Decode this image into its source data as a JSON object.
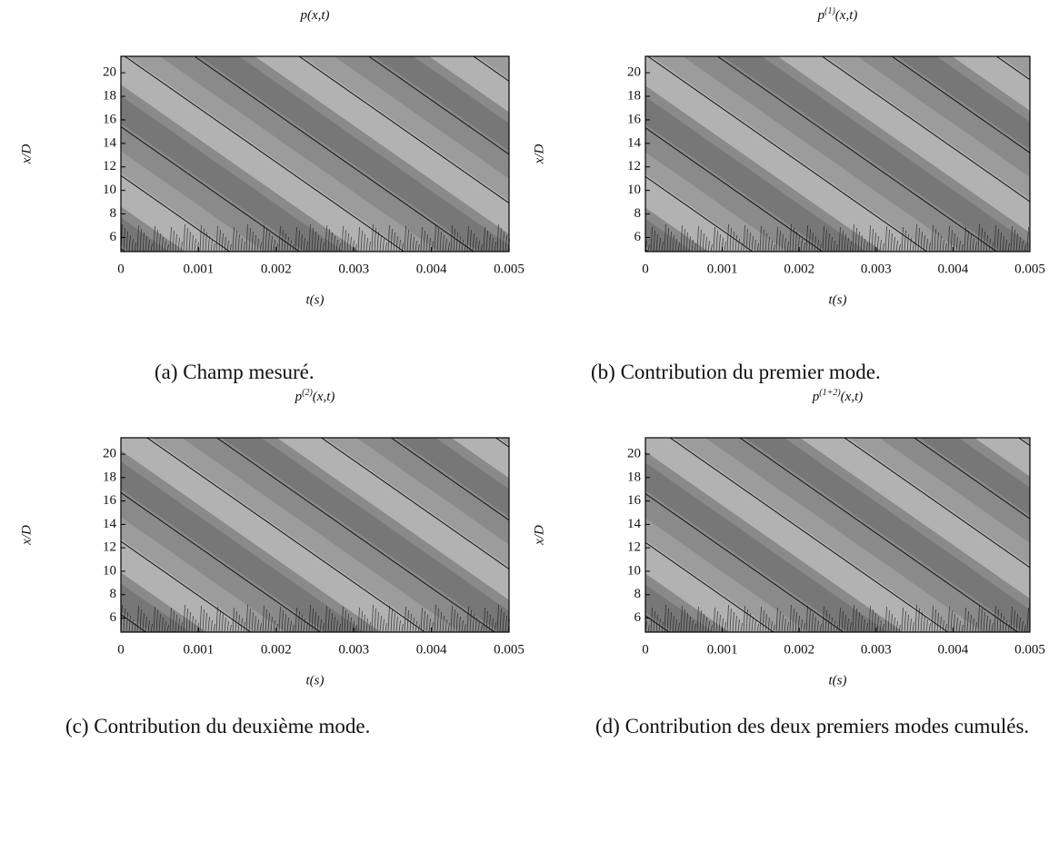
{
  "chart_data": [
    {
      "type": "contour",
      "title": "p",
      "title_args": "(x,t)",
      "xlabel": "t(s)",
      "ylabel": "x/D",
      "xlim": [
        0,
        0.005
      ],
      "xticks": [
        0,
        0.001,
        0.002,
        0.003,
        0.004,
        0.005
      ],
      "ylim": [
        4.8,
        21.4
      ],
      "yticks": [
        6,
        8,
        10,
        12,
        14,
        16,
        18,
        20
      ],
      "caption": "(a) Champ mesuré."
    },
    {
      "type": "contour",
      "title": "p",
      "title_sup": "(1)",
      "title_args": "(x,t)",
      "xlabel": "t(s)",
      "ylabel": "x/D",
      "xlim": [
        0,
        0.005
      ],
      "xticks": [
        0,
        0.001,
        0.002,
        0.003,
        0.004,
        0.005
      ],
      "ylim": [
        4.8,
        21.4
      ],
      "yticks": [
        6,
        8,
        10,
        12,
        14,
        16,
        18,
        20
      ],
      "caption": "(b) Contribution du premier mode."
    },
    {
      "type": "contour",
      "title": "p",
      "title_sup": "(2)",
      "title_args": "(x,t)",
      "xlabel": "t(s)",
      "ylabel": "x/D",
      "xlim": [
        0,
        0.005
      ],
      "xticks": [
        0,
        0.001,
        0.002,
        0.003,
        0.004,
        0.005
      ],
      "ylim": [
        4.8,
        21.4
      ],
      "yticks": [
        6,
        8,
        10,
        12,
        14,
        16,
        18,
        20
      ],
      "caption": "(c) Contribution du deuxième mode."
    },
    {
      "type": "contour",
      "title": "p",
      "title_sup": "(1+2)",
      "title_args": "(x,t)",
      "xlabel": "t(s)",
      "ylabel": "x/D",
      "xlim": [
        0,
        0.005
      ],
      "xticks": [
        0,
        0.001,
        0.002,
        0.003,
        0.004,
        0.005
      ],
      "ylim": [
        4.8,
        21.4
      ],
      "yticks": [
        6,
        8,
        10,
        12,
        14,
        16,
        18,
        20
      ],
      "caption": "(d) Contribution des deux premiers modes cumulés."
    }
  ]
}
